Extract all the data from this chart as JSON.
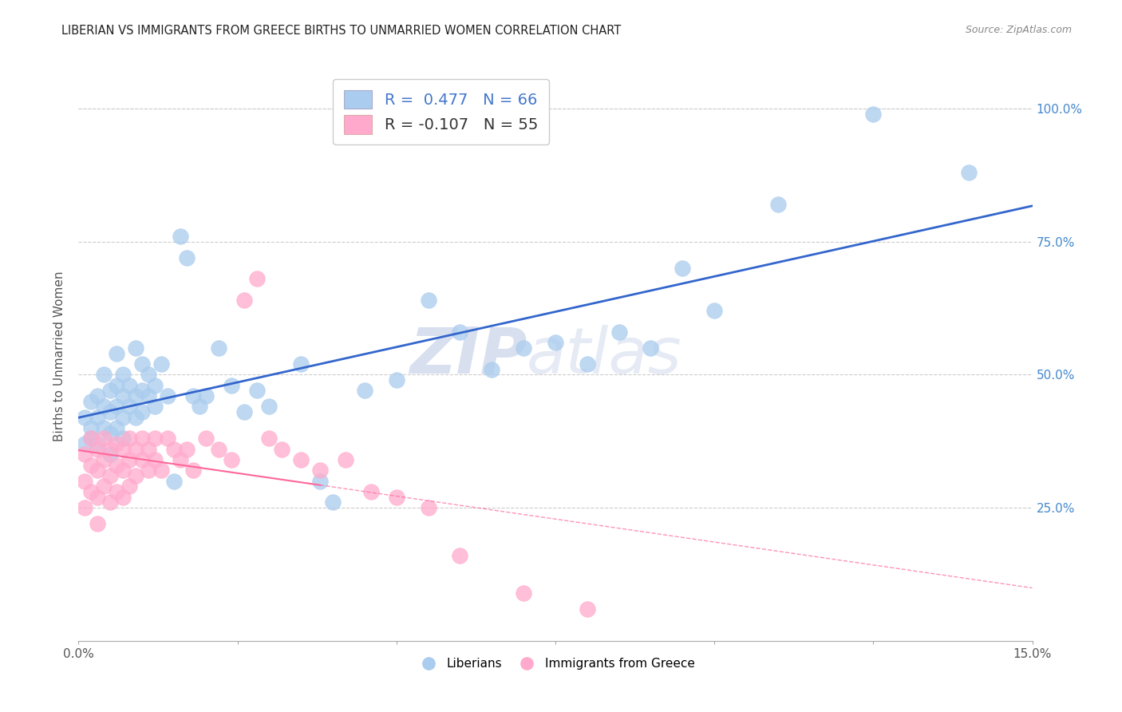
{
  "title": "LIBERIAN VS IMMIGRANTS FROM GREECE BIRTHS TO UNMARRIED WOMEN CORRELATION CHART",
  "source": "Source: ZipAtlas.com",
  "ylabel": "Births to Unmarried Women",
  "yticks_labels": [
    "25.0%",
    "50.0%",
    "75.0%",
    "100.0%"
  ],
  "ytick_vals": [
    0.25,
    0.5,
    0.75,
    1.0
  ],
  "xlim": [
    0.0,
    0.15
  ],
  "ylim": [
    0.0,
    1.07
  ],
  "legend1_R": " 0.477",
  "legend1_N": "66",
  "legend2_R": "-0.107",
  "legend2_N": "55",
  "legend_label1": "Liberians",
  "legend_label2": "Immigrants from Greece",
  "blue_color": "#AACCEE",
  "pink_color": "#FFAACC",
  "blue_line_color": "#3366CC",
  "pink_line_color": "#FF6699",
  "watermark_zip": "ZIP",
  "watermark_atlas": "atlas",
  "background_color": "#ffffff",
  "grid_color": "#cccccc",
  "blue_scatter_x": [
    0.001,
    0.001,
    0.002,
    0.002,
    0.002,
    0.003,
    0.003,
    0.003,
    0.004,
    0.004,
    0.004,
    0.005,
    0.005,
    0.005,
    0.005,
    0.006,
    0.006,
    0.006,
    0.006,
    0.007,
    0.007,
    0.007,
    0.007,
    0.008,
    0.008,
    0.009,
    0.009,
    0.009,
    0.01,
    0.01,
    0.01,
    0.011,
    0.011,
    0.012,
    0.012,
    0.013,
    0.014,
    0.015,
    0.016,
    0.017,
    0.018,
    0.019,
    0.02,
    0.022,
    0.024,
    0.026,
    0.028,
    0.03,
    0.035,
    0.038,
    0.04,
    0.045,
    0.05,
    0.055,
    0.06,
    0.065,
    0.07,
    0.075,
    0.08,
    0.085,
    0.09,
    0.095,
    0.1,
    0.11,
    0.125,
    0.14
  ],
  "blue_scatter_y": [
    0.37,
    0.42,
    0.38,
    0.4,
    0.45,
    0.37,
    0.42,
    0.46,
    0.4,
    0.44,
    0.5,
    0.39,
    0.43,
    0.47,
    0.35,
    0.4,
    0.44,
    0.48,
    0.54,
    0.38,
    0.42,
    0.46,
    0.5,
    0.44,
    0.48,
    0.42,
    0.46,
    0.55,
    0.43,
    0.47,
    0.52,
    0.46,
    0.5,
    0.48,
    0.44,
    0.52,
    0.46,
    0.3,
    0.76,
    0.72,
    0.46,
    0.44,
    0.46,
    0.55,
    0.48,
    0.43,
    0.47,
    0.44,
    0.52,
    0.3,
    0.26,
    0.47,
    0.49,
    0.64,
    0.58,
    0.51,
    0.55,
    0.56,
    0.52,
    0.58,
    0.55,
    0.7,
    0.62,
    0.82,
    0.99,
    0.88
  ],
  "pink_scatter_x": [
    0.001,
    0.001,
    0.001,
    0.002,
    0.002,
    0.002,
    0.003,
    0.003,
    0.003,
    0.003,
    0.004,
    0.004,
    0.004,
    0.005,
    0.005,
    0.005,
    0.006,
    0.006,
    0.006,
    0.007,
    0.007,
    0.007,
    0.008,
    0.008,
    0.008,
    0.009,
    0.009,
    0.01,
    0.01,
    0.011,
    0.011,
    0.012,
    0.012,
    0.013,
    0.014,
    0.015,
    0.016,
    0.017,
    0.018,
    0.02,
    0.022,
    0.024,
    0.026,
    0.028,
    0.03,
    0.032,
    0.035,
    0.038,
    0.042,
    0.046,
    0.05,
    0.055,
    0.06,
    0.07,
    0.08
  ],
  "pink_scatter_y": [
    0.35,
    0.3,
    0.25,
    0.33,
    0.28,
    0.38,
    0.32,
    0.36,
    0.27,
    0.22,
    0.34,
    0.29,
    0.38,
    0.31,
    0.36,
    0.26,
    0.33,
    0.37,
    0.28,
    0.32,
    0.36,
    0.27,
    0.34,
    0.29,
    0.38,
    0.31,
    0.36,
    0.34,
    0.38,
    0.32,
    0.36,
    0.38,
    0.34,
    0.32,
    0.38,
    0.36,
    0.34,
    0.36,
    0.32,
    0.38,
    0.36,
    0.34,
    0.64,
    0.68,
    0.38,
    0.36,
    0.34,
    0.32,
    0.34,
    0.28,
    0.27,
    0.25,
    0.16,
    0.09,
    0.06
  ]
}
